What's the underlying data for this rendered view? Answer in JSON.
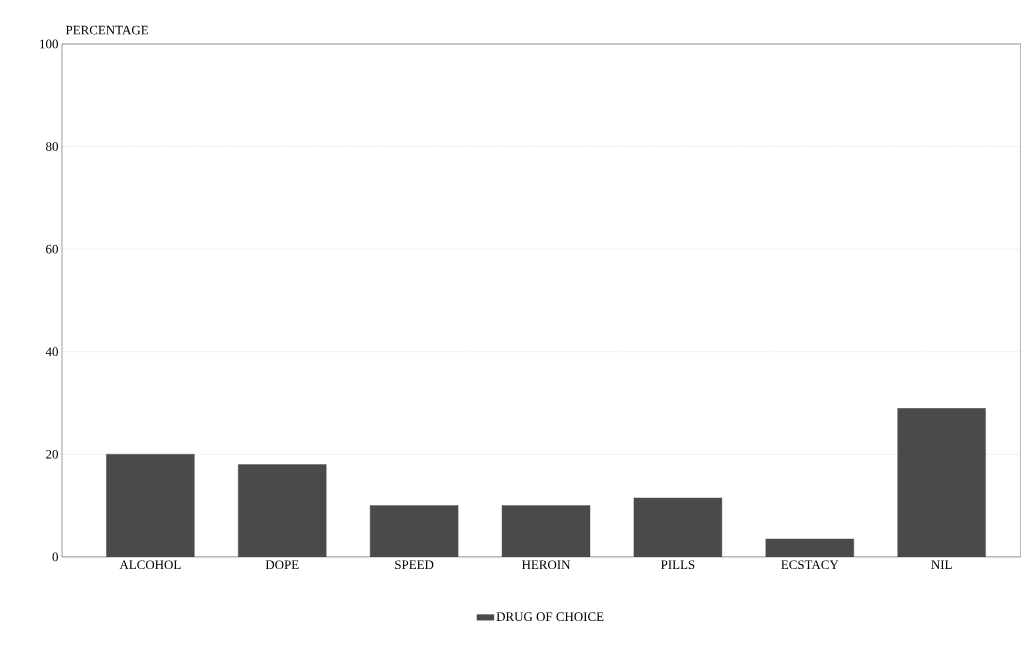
{
  "chart_data": {
    "type": "bar",
    "ylabel": "PERCENTAGE",
    "categories": [
      "ALCOHOL",
      "DOPE",
      "SPEED",
      "HEROIN",
      "PILLS",
      "ECSTACY",
      "NIL"
    ],
    "series": [
      {
        "name": "DRUG OF CHOICE",
        "color": "#4a4a4a",
        "values": [
          20,
          18,
          10,
          10,
          11.5,
          3.5,
          29
        ]
      }
    ],
    "ylim": [
      0,
      100
    ],
    "yticks": [
      0,
      20,
      40,
      60,
      80,
      100
    ],
    "grid": "y",
    "legend": "bottom"
  }
}
